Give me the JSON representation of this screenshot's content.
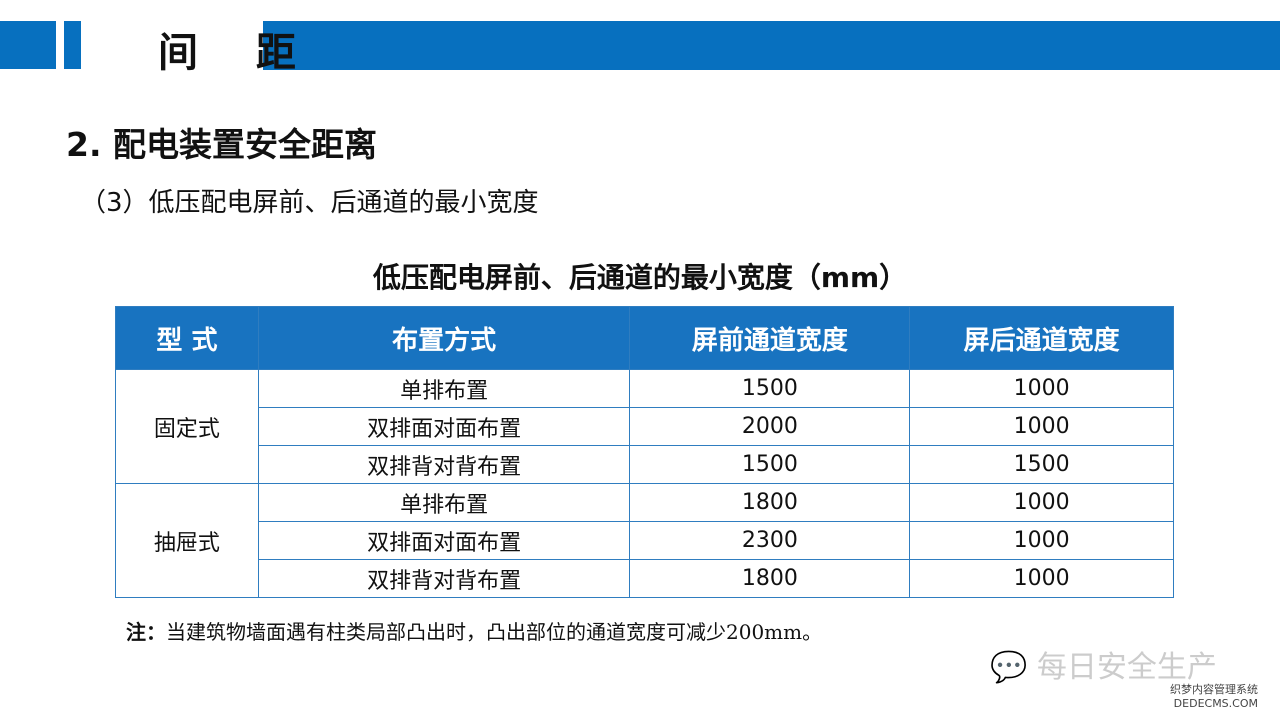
{
  "header": {
    "title": "间 距"
  },
  "section_title": "2. 配电装置安全距离",
  "subtitle": "（3）低压配电屏前、后通道的最小宽度",
  "table": {
    "caption": "低压配电屏前、后通道的最小宽度（mm）",
    "headers": [
      "型 式",
      "布置方式",
      "屏前通道宽度",
      "屏后通道宽度"
    ],
    "groups": [
      {
        "type": "固定式",
        "rows": [
          [
            "单排布置",
            "1500",
            "1000"
          ],
          [
            "双排面对面布置",
            "2000",
            "1000"
          ],
          [
            "双排背对背布置",
            "1500",
            "1500"
          ]
        ]
      },
      {
        "type": "抽屉式",
        "rows": [
          [
            "单排布置",
            "1800",
            "1000"
          ],
          [
            "双排面对面布置",
            "2300",
            "1000"
          ],
          [
            "双排背对背布置",
            "1800",
            "1000"
          ]
        ]
      }
    ]
  },
  "note": {
    "label": "注：",
    "text": "当建筑物墙面遇有柱类局部凸出时，凸出部位的通道宽度可减少200mm。"
  },
  "watermark": {
    "text": "每日安全生产",
    "site": "织梦内容管理系统",
    "domain": "DEDECMS.COM"
  },
  "colors": {
    "accent": "#0770bf"
  }
}
